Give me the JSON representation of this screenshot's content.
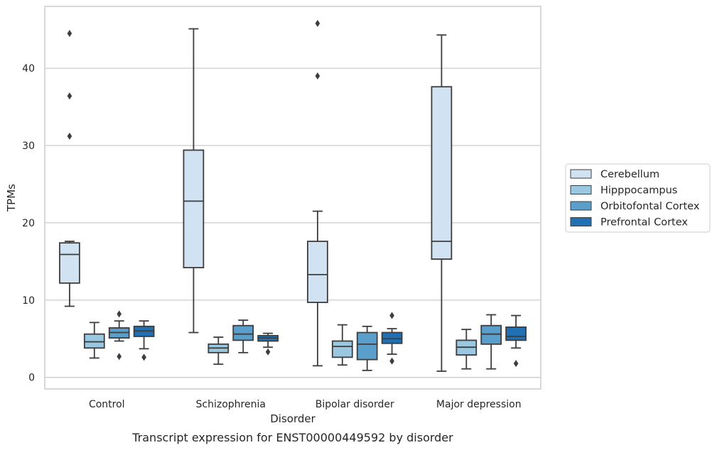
{
  "caption": "Transcript expression for ENST00000449592 by disorder",
  "chart_data": {
    "type": "box",
    "title": "",
    "xlabel": "Disorder",
    "ylabel": "TPMs",
    "ylim": [
      -1.5,
      48
    ],
    "yticks": [
      0,
      10,
      20,
      30,
      40
    ],
    "grid": "horizontal",
    "legend_position": "right",
    "categories": [
      "Control",
      "Schizophrenia",
      "Bipolar disorder",
      "Major depression"
    ],
    "series": [
      {
        "name": "Cerebellum",
        "color": "#d1e2f2",
        "boxes": [
          {
            "whislo": 9.2,
            "q1": 12.2,
            "med": 15.9,
            "q3": 17.4,
            "whishi": 17.6,
            "fliers": [
              31.2,
              36.4,
              44.5
            ]
          },
          {
            "whislo": 5.8,
            "q1": 14.2,
            "med": 22.8,
            "q3": 29.4,
            "whishi": 45.1,
            "fliers": []
          },
          {
            "whislo": 1.5,
            "q1": 9.7,
            "med": 13.3,
            "q3": 17.6,
            "whishi": 21.5,
            "fliers": [
              39.0,
              45.8
            ]
          },
          {
            "whislo": 0.8,
            "q1": 15.3,
            "med": 17.6,
            "q3": 37.6,
            "whishi": 44.3,
            "fliers": []
          }
        ]
      },
      {
        "name": "Hipppocampus",
        "color": "#9ac8e0",
        "boxes": [
          {
            "whislo": 2.5,
            "q1": 3.8,
            "med": 4.6,
            "q3": 5.6,
            "whishi": 7.1,
            "fliers": []
          },
          {
            "whislo": 1.7,
            "q1": 3.2,
            "med": 3.8,
            "q3": 4.3,
            "whishi": 5.2,
            "fliers": []
          },
          {
            "whislo": 1.6,
            "q1": 2.6,
            "med": 4.0,
            "q3": 4.7,
            "whishi": 6.8,
            "fliers": []
          },
          {
            "whislo": 1.1,
            "q1": 2.9,
            "med": 3.9,
            "q3": 4.8,
            "whishi": 6.2,
            "fliers": []
          }
        ]
      },
      {
        "name": "Orbitofontal Cortex",
        "color": "#5a9ecc",
        "boxes": [
          {
            "whislo": 4.7,
            "q1": 5.1,
            "med": 5.8,
            "q3": 6.4,
            "whishi": 7.3,
            "fliers": [
              2.7,
              8.2
            ]
          },
          {
            "whislo": 3.2,
            "q1": 4.8,
            "med": 5.6,
            "q3": 6.7,
            "whishi": 7.4,
            "fliers": []
          },
          {
            "whislo": 0.9,
            "q1": 2.3,
            "med": 4.3,
            "q3": 5.8,
            "whishi": 6.6,
            "fliers": []
          },
          {
            "whislo": 1.1,
            "q1": 4.3,
            "med": 5.6,
            "q3": 6.7,
            "whishi": 8.1,
            "fliers": []
          }
        ]
      },
      {
        "name": "Prefrontal Cortex",
        "color": "#2070b3",
        "boxes": [
          {
            "whislo": 3.7,
            "q1": 5.3,
            "med": 6.0,
            "q3": 6.6,
            "whishi": 7.3,
            "fliers": [
              2.6
            ]
          },
          {
            "whislo": 3.9,
            "q1": 4.7,
            "med": 5.1,
            "q3": 5.4,
            "whishi": 5.7,
            "fliers": [
              3.3
            ]
          },
          {
            "whislo": 3.0,
            "q1": 4.4,
            "med": 5.0,
            "q3": 5.8,
            "whishi": 6.3,
            "fliers": [
              2.1,
              8.0
            ]
          },
          {
            "whislo": 3.8,
            "q1": 4.8,
            "med": 5.3,
            "q3": 6.5,
            "whishi": 8.0,
            "fliers": [
              1.8
            ]
          }
        ]
      }
    ]
  }
}
